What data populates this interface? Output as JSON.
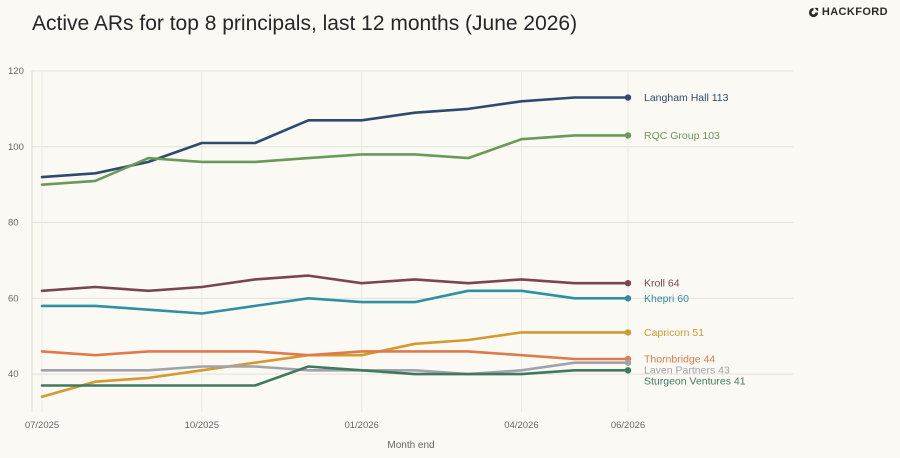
{
  "header": {
    "title": "Active ARs for top 8 principals, last 12 months (June 2026)",
    "brand": "HACKFORD",
    "brand_icon": "hackford-logo-icon"
  },
  "chart_data": {
    "type": "line",
    "title": "Active ARs for top 8 principals, last 12 months (June 2026)",
    "xlabel": "Month end",
    "ylabel": "",
    "x": [
      "07/2025",
      "08/2025",
      "09/2025",
      "10/2025",
      "11/2025",
      "12/2025",
      "01/2026",
      "02/2026",
      "03/2026",
      "04/2026",
      "05/2026",
      "06/2026"
    ],
    "x_tick_labels": [
      "07/2025",
      "10/2025",
      "01/2026",
      "04/2026",
      "06/2026"
    ],
    "ylim": [
      30,
      120
    ],
    "y_ticks": [
      40,
      60,
      80,
      100,
      120
    ],
    "grid": true,
    "legend": "end-of-line labels",
    "series": [
      {
        "name": "Langham Hall",
        "end_label": "Langham Hall 113",
        "color": "#2e4a6e",
        "values": [
          92,
          93,
          96,
          101,
          101,
          107,
          107,
          109,
          110,
          112,
          113,
          113
        ]
      },
      {
        "name": "RQC Group",
        "end_label": "RQC Group 103",
        "color": "#6a9a58",
        "values": [
          90,
          91,
          97,
          96,
          96,
          97,
          98,
          98,
          97,
          102,
          103,
          103
        ]
      },
      {
        "name": "Kroll",
        "end_label": "Kroll 64",
        "color": "#7a4552",
        "values": [
          62,
          63,
          62,
          63,
          65,
          66,
          64,
          65,
          64,
          65,
          64,
          64
        ]
      },
      {
        "name": "Khepri",
        "end_label": "Khepri 60",
        "color": "#2f8fa3",
        "values": [
          58,
          58,
          57,
          56,
          58,
          60,
          59,
          59,
          62,
          62,
          60,
          60
        ]
      },
      {
        "name": "Capricorn",
        "end_label": "Capricorn 51",
        "color": "#d39a30",
        "values": [
          34,
          38,
          39,
          41,
          43,
          45,
          45,
          48,
          49,
          51,
          51,
          51
        ]
      },
      {
        "name": "Thornbridge",
        "end_label": "Thornbridge 44",
        "color": "#e07a4b",
        "values": [
          46,
          45,
          46,
          46,
          46,
          45,
          46,
          46,
          46,
          45,
          44,
          44
        ]
      },
      {
        "name": "Laven Partners",
        "end_label": "Laven Partners 43",
        "color": "#a2a2ab",
        "values": [
          41,
          41,
          41,
          42,
          42,
          41,
          41,
          41,
          40,
          41,
          43,
          43
        ]
      },
      {
        "name": "Sturgeon Ventures",
        "end_label": "Sturgeon Ventures 41",
        "color": "#3f7a5e",
        "values": [
          37,
          37,
          37,
          37,
          37,
          42,
          41,
          40,
          40,
          40,
          41,
          41
        ]
      }
    ]
  }
}
